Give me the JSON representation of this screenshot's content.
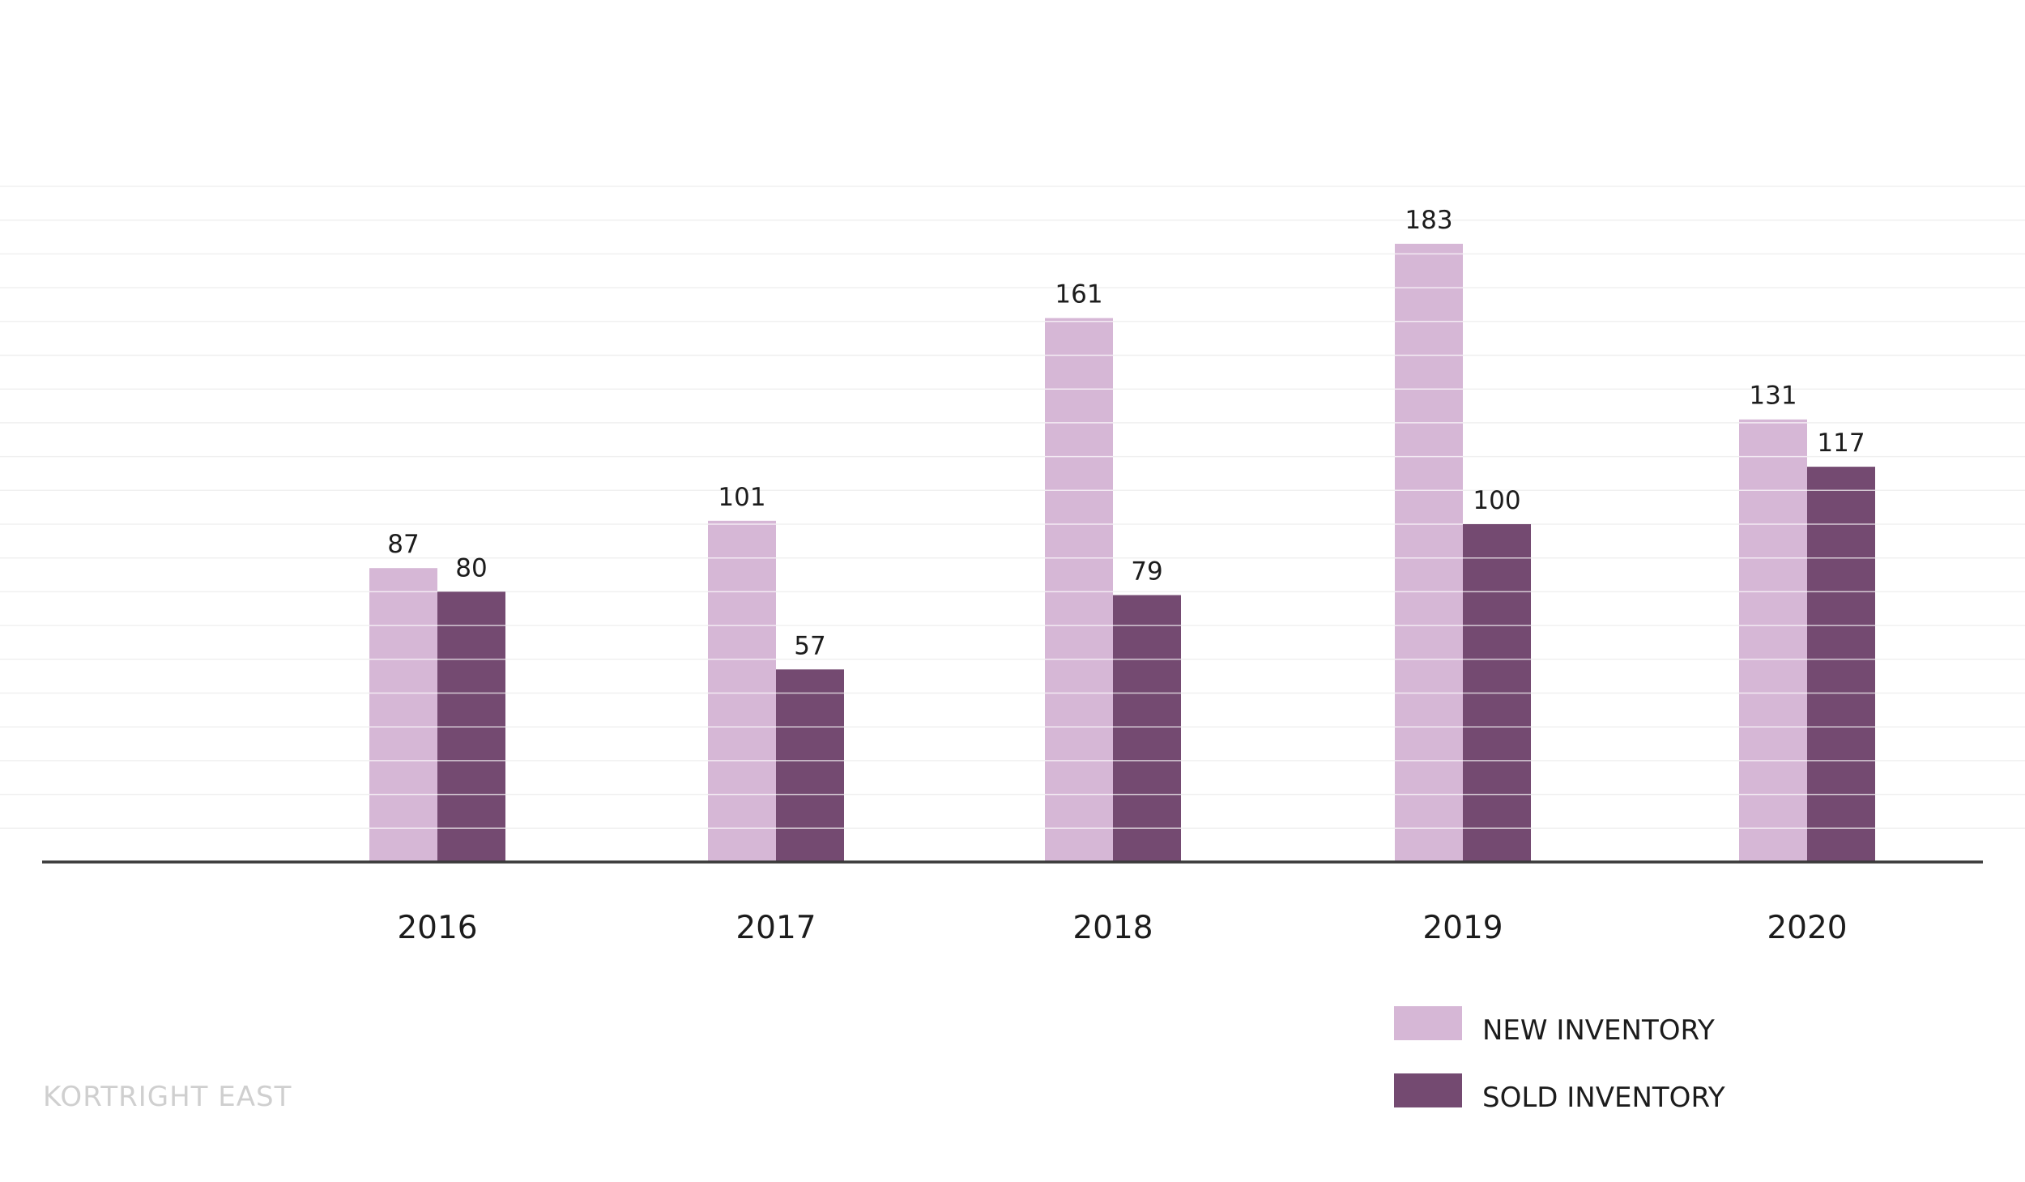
{
  "chart_data": {
    "type": "bar",
    "categories": [
      "2016",
      "2017",
      "2018",
      "2019",
      "2020"
    ],
    "series": [
      {
        "name": "NEW INVENTORY",
        "values": [
          87,
          101,
          161,
          183,
          131
        ],
        "color": "#d6b7d6"
      },
      {
        "name": "SOLD INVENTORY",
        "values": [
          80,
          57,
          79,
          100,
          117
        ],
        "color": "#744a71"
      }
    ],
    "ylim": [
      0,
      200
    ],
    "grid": true,
    "gridline_color": "#f0f0f0",
    "bar_separator_color": "#ffffff",
    "axis_color": "#3a3a3a",
    "legend_position": "bottom-right",
    "data_labels": true
  },
  "watermark": "KORTRIGHT EAST"
}
